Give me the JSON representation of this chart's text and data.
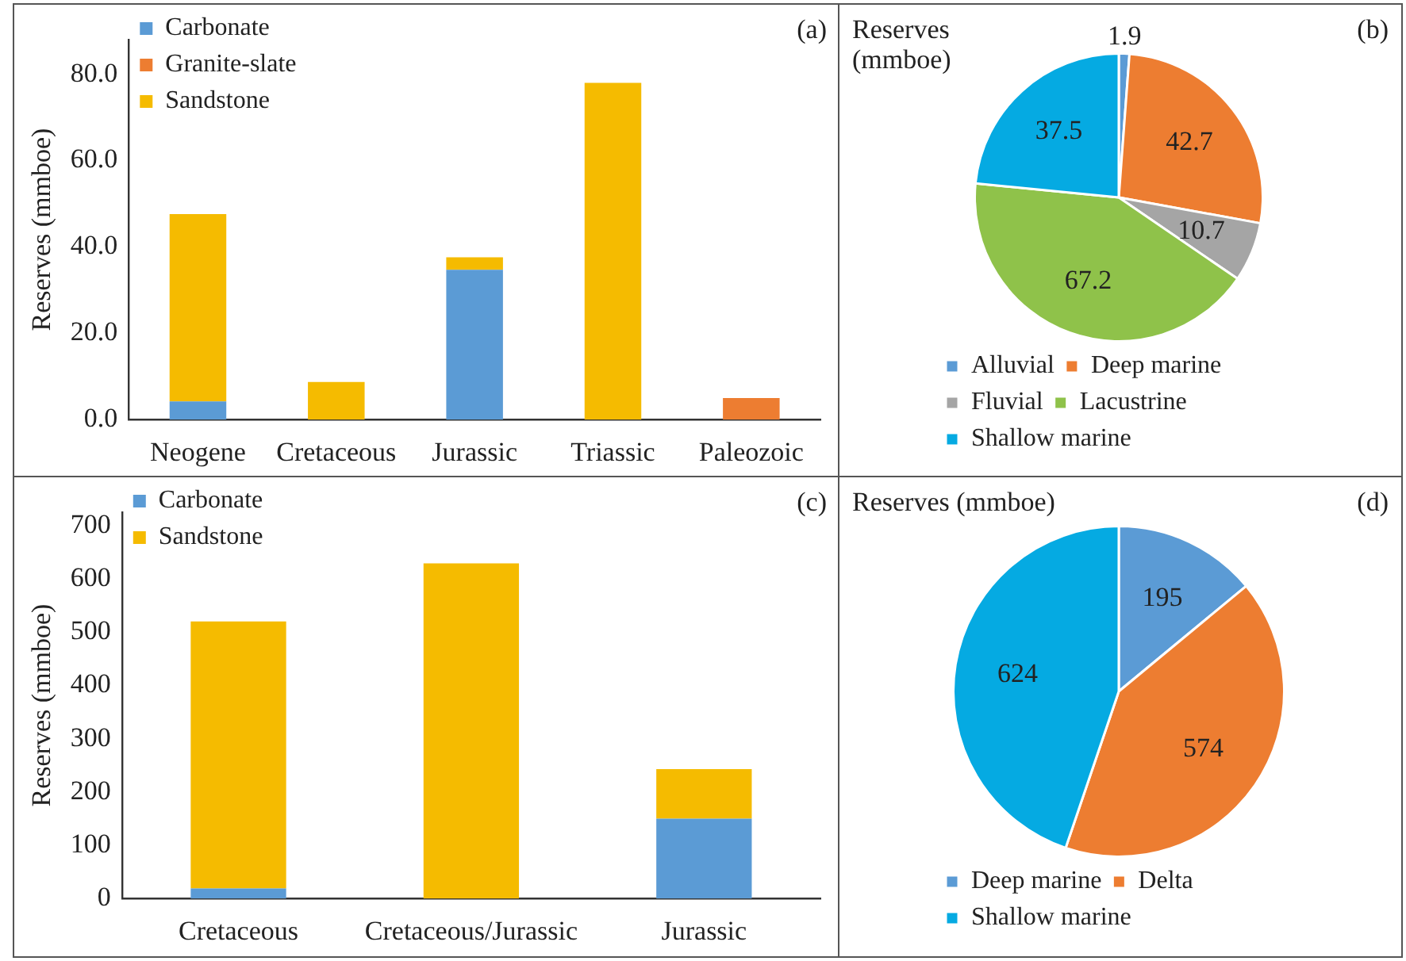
{
  "chart_data": [
    {
      "type": "bar",
      "stacked": true,
      "ylabel": "Reserves (mmboe)",
      "annotations": [
        "(a)"
      ],
      "categories": [
        "Neogene",
        "Cretaceous",
        "Jurassic",
        "Triassic",
        "Paleozoic"
      ],
      "series": [
        {
          "name": "Carbonate",
          "color": "#5b9bd5",
          "values": [
            4.2,
            null,
            34.7,
            null,
            null
          ]
        },
        {
          "name": "Granite-slate",
          "color": "#ed7d31",
          "values": [
            null,
            null,
            null,
            null,
            5.0
          ]
        },
        {
          "name": "Sandstone",
          "color": "#f5bb00",
          "values": [
            43.4,
            8.7,
            2.9,
            78.0,
            null
          ]
        }
      ],
      "ylim": [
        0,
        88
      ],
      "yticks": [
        {
          "value": 0,
          "label": "0.0"
        },
        {
          "value": 20,
          "label": "20.0"
        },
        {
          "value": 40,
          "label": "40.0"
        },
        {
          "value": 60,
          "label": "60.0"
        },
        {
          "value": 80,
          "label": "80.0"
        }
      ],
      "grid": false,
      "legend": "top left"
    },
    {
      "type": "pie",
      "title": "Reserves (mmboe)",
      "annotations": [
        "(b)"
      ],
      "categories": [
        "Alluvial",
        "Deep marine",
        "Fluvial",
        "Lacustrine",
        "Shallow marine"
      ],
      "values": [
        1.9,
        42.7,
        10.7,
        67.2,
        37.5
      ],
      "colors": [
        "#5b9bd5",
        "#ed7d31",
        "#a5a5a5",
        "#8fc24a",
        "#05aae2"
      ],
      "data_labels": true,
      "legend": "bottom"
    },
    {
      "type": "bar",
      "stacked": true,
      "ylabel": "Reserves (mmboe)",
      "annotations": [
        "(c)"
      ],
      "categories": [
        "Cretaceous",
        "Cretaceous/Jurassic",
        "Jurassic"
      ],
      "series": [
        {
          "name": "Carbonate",
          "color": "#5b9bd5",
          "values": [
            19,
            null,
            150
          ]
        },
        {
          "name": "Sandstone",
          "color": "#f5bb00",
          "values": [
            501,
            629,
            93
          ]
        }
      ],
      "ylim": [
        0,
        725
      ],
      "yticks": [
        0,
        100,
        200,
        300,
        400,
        500,
        600,
        700
      ],
      "grid": false,
      "legend": "top left"
    },
    {
      "type": "pie",
      "title": "Reserves (mmboe)",
      "annotations": [
        "(d)"
      ],
      "categories": [
        "Deep marine",
        "Delta",
        "Shallow marine"
      ],
      "values": [
        195,
        574,
        624
      ],
      "colors": [
        "#5b9bd5",
        "#ed7d31",
        "#05aae2"
      ],
      "data_labels": true,
      "legend": "bottom"
    }
  ]
}
